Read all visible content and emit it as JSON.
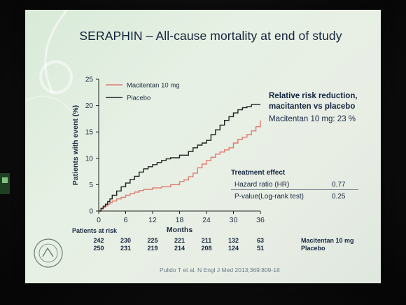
{
  "slide": {
    "title": "SERAPHIN – All-cause mortality at end of study",
    "citation": "Pulido T et al. N Engl J Med 2013;369:809-18"
  },
  "chart_data": {
    "type": "line",
    "title": "SERAPHIN – All-cause mortality at end of study",
    "xlabel": "Months",
    "ylabel": "Patients with event (%)",
    "xlim": [
      0,
      36
    ],
    "ylim": [
      0,
      25
    ],
    "x_ticks": [
      "0",
      "6",
      "12",
      "18",
      "24",
      "30",
      "36"
    ],
    "y_ticks": [
      "0",
      "5",
      "10",
      "15",
      "20",
      "25"
    ],
    "legend_position": "top-left",
    "series": [
      {
        "name": "Macitentan 10 mg",
        "color": "#e07a6e",
        "points": [
          [
            0,
            0
          ],
          [
            0.5,
            0.4
          ],
          [
            1,
            0.7
          ],
          [
            1.5,
            1.0
          ],
          [
            2,
            1.3
          ],
          [
            2.5,
            1.6
          ],
          [
            3,
            1.9
          ],
          [
            4,
            2.3
          ],
          [
            5,
            2.6
          ],
          [
            6,
            3.0
          ],
          [
            7,
            3.3
          ],
          [
            8,
            3.6
          ],
          [
            9,
            3.9
          ],
          [
            10,
            4.1
          ],
          [
            12,
            4.4
          ],
          [
            14,
            4.6
          ],
          [
            16,
            5.0
          ],
          [
            18,
            5.6
          ],
          [
            19,
            5.9
          ],
          [
            20,
            6.5
          ],
          [
            21,
            7.2
          ],
          [
            22,
            8.2
          ],
          [
            23,
            8.9
          ],
          [
            24,
            9.6
          ],
          [
            25,
            10.2
          ],
          [
            26,
            10.8
          ],
          [
            27,
            11.2
          ],
          [
            28,
            11.6
          ],
          [
            29,
            12.0
          ],
          [
            30,
            12.9
          ],
          [
            31,
            13.6
          ],
          [
            32,
            14.0
          ],
          [
            33,
            14.5
          ],
          [
            34,
            15.2
          ],
          [
            35,
            16.0
          ],
          [
            36,
            17.2
          ]
        ]
      },
      {
        "name": "Placebo",
        "color": "#222222",
        "points": [
          [
            0,
            0
          ],
          [
            0.5,
            0.5
          ],
          [
            1,
            0.9
          ],
          [
            1.5,
            1.3
          ],
          [
            2,
            1.8
          ],
          [
            2.5,
            2.3
          ],
          [
            3,
            3.0
          ],
          [
            4,
            3.8
          ],
          [
            5,
            4.6
          ],
          [
            6,
            5.3
          ],
          [
            7,
            6.0
          ],
          [
            8,
            6.6
          ],
          [
            9,
            7.4
          ],
          [
            10,
            8.0
          ],
          [
            11,
            8.4
          ],
          [
            12,
            8.8
          ],
          [
            13,
            9.2
          ],
          [
            14,
            9.6
          ],
          [
            15,
            9.9
          ],
          [
            16,
            10.1
          ],
          [
            18,
            10.6
          ],
          [
            20,
            11.3
          ],
          [
            21,
            12.0
          ],
          [
            22,
            12.5
          ],
          [
            23,
            12.9
          ],
          [
            24,
            13.4
          ],
          [
            25,
            14.5
          ],
          [
            26,
            15.4
          ],
          [
            27,
            16.3
          ],
          [
            28,
            17.2
          ],
          [
            29,
            17.9
          ],
          [
            30,
            18.6
          ],
          [
            31,
            19.2
          ],
          [
            32,
            19.6
          ],
          [
            33,
            19.8
          ],
          [
            34,
            20.2
          ],
          [
            36,
            20.2
          ]
        ]
      }
    ],
    "annotations": {
      "rrr_title": "Relative risk reduction,",
      "rrr_subtitle": "macitanten vs placebo",
      "rrr_value": "Macitentan 10 mg:  23 %",
      "treatment_effect_title": "Treatment effect",
      "hr_label": "Hazard ratio (HR)",
      "hr_value": "0.77",
      "p_label": "P-value(Log-rank test)",
      "p_value": "0.25"
    },
    "at_risk": {
      "label": "Patients at risk",
      "rows": [
        {
          "name": "Macitentan 10 mg",
          "values": [
            "242",
            "230",
            "225",
            "221",
            "211",
            "132",
            "63"
          ]
        },
        {
          "name": "Placebo",
          "values": [
            "250",
            "231",
            "219",
            "214",
            "208",
            "124",
            "51"
          ]
        }
      ]
    }
  }
}
